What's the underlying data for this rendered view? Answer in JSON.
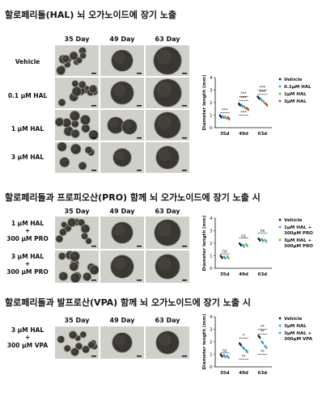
{
  "panels": [
    {
      "id": "hal",
      "title": "할로페리돌(HAL) 뇌 오가노이드에 장기 노출",
      "columns": [
        "35 Day",
        "49 Day",
        "63 Day"
      ],
      "rows": [
        "Vehicle",
        "0.1 μM HAL",
        "1 μM HAL",
        "3 μM HAL"
      ],
      "chart_data": {
        "type": "scatter",
        "ylabel": "Diameter length (mm)",
        "ylim": [
          0,
          4
        ],
        "yticks": [
          "0",
          "1",
          "2",
          "3",
          "4"
        ],
        "categories": [
          "35d",
          "49d",
          "63d"
        ],
        "legend_position": "right",
        "series": [
          {
            "name": "Vehicle",
            "color": "#1a1a1a",
            "values": [
              0.9,
              1.85,
              2.4
            ]
          },
          {
            "name": "0.1μM HAL",
            "color": "#3d8fe0",
            "values": [
              0.85,
              1.75,
              2.25
            ]
          },
          {
            "name": "1μM HAL",
            "color": "#4fbf4f",
            "values": [
              0.8,
              1.6,
              2.05
            ]
          },
          {
            "name": "3μM HAL",
            "color": "#c23a3a",
            "values": [
              0.75,
              1.5,
              1.85
            ]
          }
        ],
        "annotations": [
          "***",
          "***",
          "***",
          "***",
          "***",
          "***"
        ]
      }
    },
    {
      "id": "pro",
      "title": "할로페리돌과 프로피오산(PRO) 함께 뇌 오가노이드에 장기 노출 시",
      "columns": [
        "35 Day",
        "49 Day",
        "63 Day"
      ],
      "rows": [
        "1 μM HAL\n+\n300 μM PRO",
        "3 μM HAL\n+\n300 μM PRO"
      ],
      "chart_data": {
        "type": "scatter",
        "ylabel": "Diameter length (mm)",
        "ylim": [
          0,
          4
        ],
        "yticks": [
          "0",
          "1",
          "2",
          "3",
          "4"
        ],
        "categories": [
          "35d",
          "49d",
          "63d"
        ],
        "legend_position": "right",
        "series": [
          {
            "name": "Vehicle",
            "color": "#1a1a1a",
            "values": [
              0.9,
              1.9,
              2.3
            ]
          },
          {
            "name": "1μM HAL +\n300μM PRO",
            "color": "#3d8fe0",
            "values": [
              0.85,
              1.8,
              2.25
            ]
          },
          {
            "name": "3μM HAL +\n300μM PRO",
            "color": "#4fbf4f",
            "values": [
              0.88,
              1.85,
              2.2
            ]
          }
        ],
        "annotations": [
          "ns",
          "ns",
          "ns"
        ]
      }
    },
    {
      "id": "vpa",
      "title": "할로페리돌과 발프로산(VPA) 함께 뇌 오가노이드에 장기 노출 시",
      "columns": [
        "35 Day",
        "49 Day",
        "63 Day"
      ],
      "rows": [
        "3 μM HAL\n+\n300 μM VPA"
      ],
      "chart_data": {
        "type": "scatter",
        "ylabel": "Diameter length (mm)",
        "ylim": [
          0,
          4
        ],
        "yticks": [
          "0",
          "1",
          "2",
          "3",
          "4"
        ],
        "categories": [
          "35d",
          "49d",
          "63d"
        ],
        "legend_position": "right",
        "series": [
          {
            "name": "Vehicle",
            "color": "#1a1a1a",
            "values": [
              0.9,
              1.8,
              2.4
            ]
          },
          {
            "name": "3μM HAL",
            "color": "#3d8fe0",
            "values": [
              0.85,
              1.5,
              1.95
            ]
          },
          {
            "name": "3μM HAL +\n300μM VPA",
            "color": "#2fa89a",
            "values": [
              0.8,
              1.25,
              1.6
            ]
          }
        ],
        "annotations": [
          "ns",
          "*",
          "**",
          "**",
          "**",
          "**"
        ]
      }
    }
  ]
}
